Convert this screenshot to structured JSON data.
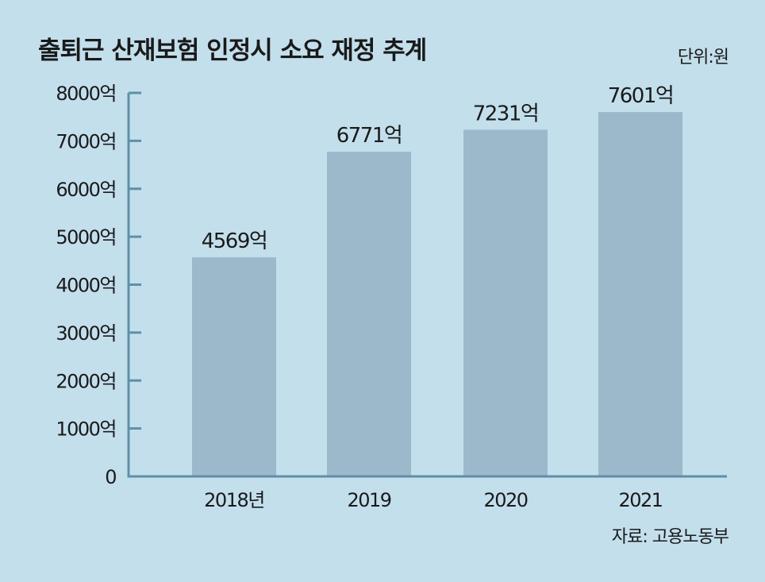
{
  "chart_data": {
    "type": "bar",
    "title": "출퇴근 산재보험 인정시 소요 재정 추계",
    "unit_note": "단위:원",
    "source": "자료: 고용노동부",
    "categories": [
      "2018년",
      "2019",
      "2020",
      "2021"
    ],
    "values": [
      4569,
      6771,
      7231,
      7601
    ],
    "data_labels": [
      "4569억",
      "6771억",
      "7231억",
      "7601억"
    ],
    "y_ticks": [
      0,
      1000,
      2000,
      3000,
      4000,
      5000,
      6000,
      7000,
      8000
    ],
    "y_tick_labels": [
      "0",
      "1000억",
      "2000억",
      "3000억",
      "4000억",
      "5000억",
      "6000억",
      "7000억",
      "8000억"
    ],
    "ylim": [
      0,
      8000
    ],
    "grid": false,
    "legend": "none",
    "colors": {
      "background": "#c3dfec",
      "bar": "#9bb9ca",
      "axis": "#5f8fa8",
      "text": "#1a1a1a"
    }
  }
}
